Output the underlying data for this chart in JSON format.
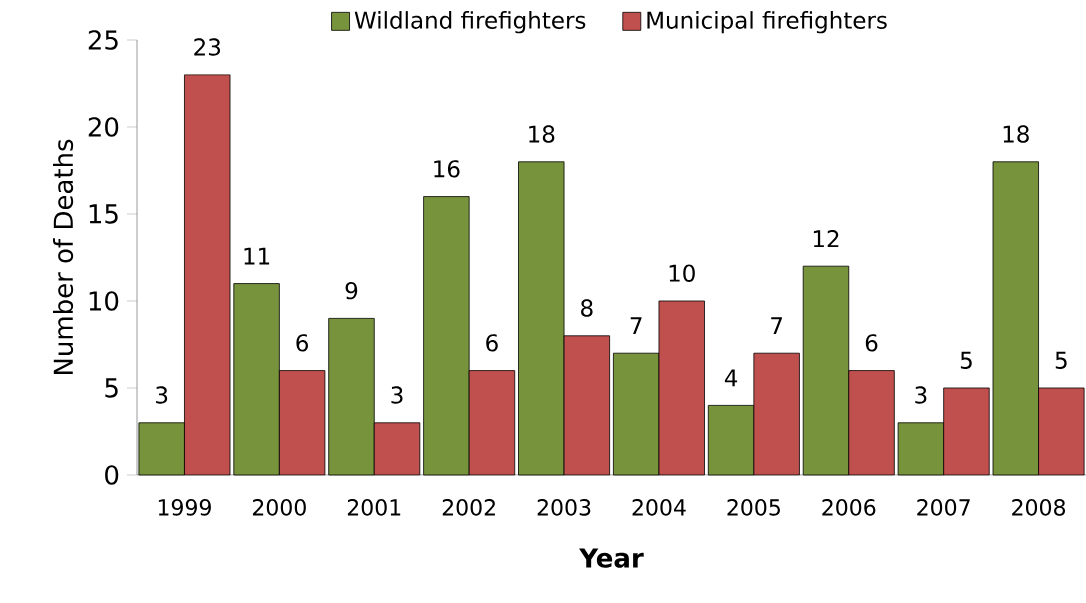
{
  "chart_data": {
    "type": "bar",
    "xlabel": "Year",
    "ylabel": "Number of Deaths",
    "categories": [
      "1999",
      "2000",
      "2001",
      "2002",
      "2003",
      "2004",
      "2005",
      "2006",
      "2007",
      "2008"
    ],
    "series": [
      {
        "name": "Wildland firefighters",
        "color": "#77933c",
        "values": [
          3,
          11,
          9,
          16,
          18,
          7,
          4,
          12,
          3,
          18
        ]
      },
      {
        "name": "Municipal firefighters",
        "color": "#c0504d",
        "values": [
          23,
          6,
          3,
          6,
          8,
          10,
          7,
          6,
          5,
          5
        ]
      }
    ],
    "ylim": [
      0,
      25
    ],
    "yticks": [
      0,
      5,
      10,
      15,
      20,
      25
    ],
    "grid": false,
    "legend": "top",
    "data_labels": true
  }
}
